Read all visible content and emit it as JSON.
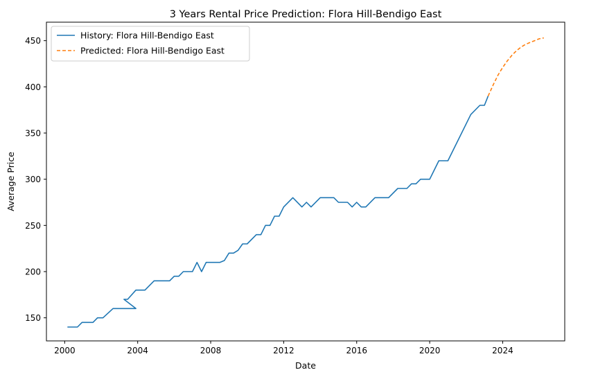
{
  "chart_data": {
    "type": "line",
    "title": "3 Years Rental Price Prediction: Flora Hill-Bendigo East",
    "xlabel": "Date",
    "ylabel": "Average Price",
    "xlim": [
      1999.0,
      2027.4
    ],
    "ylim": [
      125,
      470
    ],
    "x_ticks": [
      "2000",
      "2004",
      "2008",
      "2012",
      "2016",
      "2020",
      "2024"
    ],
    "y_ticks": [
      "150",
      "200",
      "250",
      "300",
      "350",
      "400",
      "450"
    ],
    "grid": false,
    "legend_position": "top-left",
    "series": [
      {
        "name": "History: Flora Hill-Bendigo East",
        "color": "#1f77b4",
        "style": "solid",
        "points": [
          [
            2000.15,
            140
          ],
          [
            2000.7,
            140
          ],
          [
            2000.95,
            145
          ],
          [
            2001.55,
            145
          ],
          [
            2001.8,
            150
          ],
          [
            2002.1,
            150
          ],
          [
            2002.65,
            160
          ],
          [
            2003.9,
            160
          ],
          [
            2003.25,
            170
          ],
          [
            2003.45,
            170
          ],
          [
            2003.9,
            180
          ],
          [
            2004.4,
            180
          ],
          [
            2004.9,
            190
          ],
          [
            2005.75,
            190
          ],
          [
            2006.0,
            195
          ],
          [
            2006.25,
            195
          ],
          [
            2006.5,
            200
          ],
          [
            2007.0,
            200
          ],
          [
            2007.25,
            210
          ],
          [
            2007.5,
            200
          ],
          [
            2007.75,
            210
          ],
          [
            2008.5,
            210
          ],
          [
            2008.75,
            212
          ],
          [
            2009.0,
            220
          ],
          [
            2009.25,
            220
          ],
          [
            2009.5,
            223
          ],
          [
            2009.75,
            230
          ],
          [
            2010.0,
            230
          ],
          [
            2010.5,
            240
          ],
          [
            2010.75,
            240
          ],
          [
            2011.0,
            250
          ],
          [
            2011.25,
            250
          ],
          [
            2011.5,
            260
          ],
          [
            2011.75,
            260
          ],
          [
            2012.0,
            270
          ],
          [
            2012.5,
            280
          ],
          [
            2013.0,
            270
          ],
          [
            2013.25,
            275
          ],
          [
            2013.5,
            270
          ],
          [
            2014.0,
            280
          ],
          [
            2014.75,
            280
          ],
          [
            2015.0,
            275
          ],
          [
            2015.5,
            275
          ],
          [
            2015.75,
            270
          ],
          [
            2016.0,
            275
          ],
          [
            2016.25,
            270
          ],
          [
            2016.5,
            270
          ],
          [
            2017.0,
            280
          ],
          [
            2017.75,
            280
          ],
          [
            2018.25,
            290
          ],
          [
            2018.75,
            290
          ],
          [
            2019.0,
            295
          ],
          [
            2019.25,
            295
          ],
          [
            2019.5,
            300
          ],
          [
            2020.0,
            300
          ],
          [
            2020.5,
            320
          ],
          [
            2021.0,
            320
          ],
          [
            2022.25,
            370
          ],
          [
            2022.75,
            380
          ],
          [
            2023.0,
            380
          ],
          [
            2023.2,
            390
          ]
        ]
      },
      {
        "name": "Predicted: Flora Hill-Bendigo East",
        "color": "#ff7f0e",
        "style": "dashed",
        "points": [
          [
            2023.2,
            390
          ],
          [
            2023.5,
            403
          ],
          [
            2023.75,
            413
          ],
          [
            2024.0,
            421
          ],
          [
            2024.25,
            428
          ],
          [
            2024.5,
            434
          ],
          [
            2024.75,
            439
          ],
          [
            2025.0,
            443
          ],
          [
            2025.25,
            446
          ],
          [
            2025.5,
            448
          ],
          [
            2025.75,
            450
          ],
          [
            2026.0,
            452
          ],
          [
            2026.25,
            453
          ]
        ]
      }
    ]
  }
}
